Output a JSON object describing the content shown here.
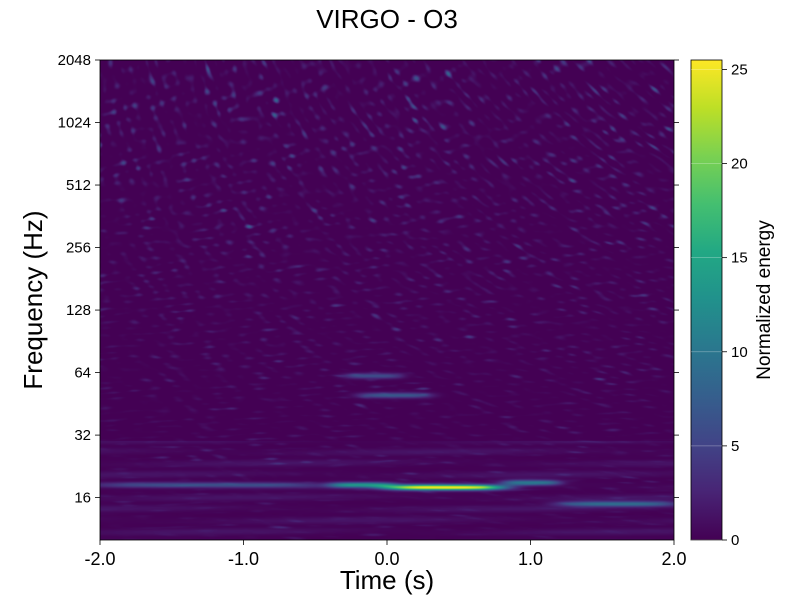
{
  "chart_data": {
    "type": "heatmap",
    "title": "VIRGO - O3",
    "xlabel": "Time (s)",
    "ylabel": "Frequency (Hz)",
    "xlim": [
      -2.0,
      2.0
    ],
    "ylim": [
      10,
      2048
    ],
    "yscale": "log2",
    "x_ticks": [
      -2.0,
      -1.0,
      0.0,
      1.0,
      2.0
    ],
    "x_tick_labels": [
      "-2.0",
      "-1.0",
      "0.0",
      "1.0",
      "2.0"
    ],
    "y_ticks": [
      16,
      32,
      64,
      128,
      256,
      512,
      1024,
      2048
    ],
    "y_tick_labels": [
      "16",
      "32",
      "64",
      "128",
      "256",
      "512",
      "1024",
      "2048"
    ],
    "colormap": "viridis",
    "colorbar": {
      "label": "Normalized energy",
      "range": [
        0,
        25.5
      ],
      "ticks": [
        0,
        5,
        10,
        15,
        20,
        25
      ],
      "tick_labels": [
        "0",
        "5",
        "10",
        "15",
        "20",
        "25"
      ]
    },
    "features": [
      {
        "t_start": 0.0,
        "t_end": 0.8,
        "freq": 18,
        "energy": 25
      },
      {
        "t_start": -0.4,
        "t_end": 0.05,
        "freq": 18.5,
        "energy": 12
      },
      {
        "t_start": 0.8,
        "t_end": 1.2,
        "freq": 19,
        "energy": 10
      },
      {
        "t_start": 1.2,
        "t_end": 2.0,
        "freq": 15,
        "energy": 9
      },
      {
        "t_start": -2.0,
        "t_end": -0.5,
        "freq": 18.5,
        "energy": 6
      },
      {
        "t_start": -0.2,
        "t_end": 0.3,
        "freq": 50,
        "energy": 7
      },
      {
        "t_start": -0.3,
        "t_end": 0.1,
        "freq": 62,
        "energy": 6
      }
    ]
  }
}
